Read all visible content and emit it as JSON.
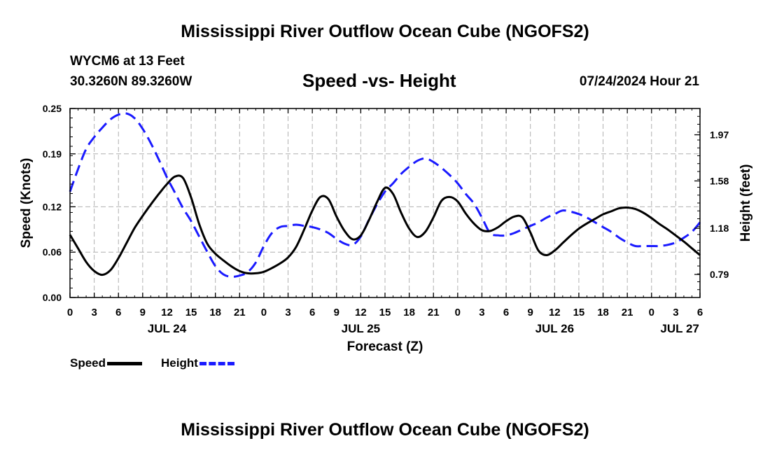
{
  "header": {
    "title": "Mississippi River Outflow Ocean Cube (NGOFS2)",
    "station": "WYCM6 at 13 Feet",
    "coords": "30.3260N  89.3260W",
    "subtitle": "Speed -vs- Height",
    "datetime": "07/24/2024 Hour 21"
  },
  "footer": {
    "title": "Mississippi River Outflow Ocean Cube (NGOFS2)"
  },
  "legend": {
    "speed_label": "Speed",
    "height_label": "Height"
  },
  "colors": {
    "speed": "#000000",
    "height": "#1a1aff",
    "grid": "#b0b0b0"
  },
  "chart_data": {
    "type": "line",
    "title": "Speed -vs- Height",
    "xlabel": "Forecast (Z)",
    "ylabel": "Speed (Knots)",
    "y2label": "Height (feet)",
    "xlim": [
      0,
      78
    ],
    "ylim": [
      0,
      0.25
    ],
    "y2lim": [
      0.595,
      2.192
    ],
    "x_ticks": [
      0,
      3,
      6,
      9,
      12,
      15,
      18,
      21,
      24,
      27,
      30,
      33,
      36,
      39,
      42,
      45,
      48,
      51,
      54,
      57,
      60,
      63,
      66,
      69,
      72,
      75,
      78
    ],
    "x_tick_labels": [
      "0",
      "3",
      "6",
      "9",
      "12",
      "15",
      "18",
      "21",
      "0",
      "3",
      "6",
      "9",
      "12",
      "15",
      "18",
      "21",
      "0",
      "3",
      "6",
      "9",
      "12",
      "15",
      "18",
      "21",
      "0",
      "3",
      "6"
    ],
    "date_labels": [
      {
        "label": "JUL 24",
        "x": 12
      },
      {
        "label": "JUL 25",
        "x": 36
      },
      {
        "label": "JUL 26",
        "x": 60
      },
      {
        "label": "JUL 27",
        "x": 75.5
      }
    ],
    "y_ticks": [
      0,
      0.06,
      0.12,
      0.19,
      0.25
    ],
    "y_tick_labels": [
      "0.00",
      "0.06",
      "0.12",
      "0.19",
      "0.25"
    ],
    "y2_ticks": [
      0.79,
      1.18,
      1.58,
      1.97
    ],
    "y2_tick_labels": [
      "0.79",
      "1.18",
      "1.58",
      "1.97"
    ],
    "grid": true,
    "legend_position": "bottom-left",
    "series": [
      {
        "name": "Speed",
        "axis": "left",
        "style": "solid",
        "x": [
          0,
          1,
          2,
          3,
          4,
          5,
          6,
          7,
          8,
          9,
          10,
          11,
          12,
          13,
          14,
          15,
          16,
          17,
          18,
          19,
          20,
          21,
          22,
          23,
          24,
          25,
          26,
          27,
          28,
          29,
          30,
          31,
          32,
          33,
          34,
          35,
          36,
          37,
          38,
          39,
          40,
          41,
          42,
          43,
          44,
          45,
          46,
          47,
          48,
          49,
          50,
          51,
          52,
          53,
          54,
          55,
          56,
          57,
          58,
          59,
          60,
          61,
          62,
          63,
          64,
          65,
          66,
          67,
          68,
          69,
          70,
          71,
          72,
          73,
          74,
          75,
          76,
          77,
          78
        ],
        "values": [
          0.083,
          0.065,
          0.047,
          0.035,
          0.03,
          0.036,
          0.052,
          0.072,
          0.092,
          0.108,
          0.123,
          0.137,
          0.15,
          0.16,
          0.158,
          0.132,
          0.097,
          0.071,
          0.058,
          0.049,
          0.041,
          0.035,
          0.032,
          0.032,
          0.034,
          0.039,
          0.045,
          0.053,
          0.067,
          0.09,
          0.115,
          0.133,
          0.13,
          0.107,
          0.088,
          0.077,
          0.082,
          0.102,
          0.126,
          0.145,
          0.137,
          0.112,
          0.091,
          0.08,
          0.087,
          0.106,
          0.128,
          0.133,
          0.127,
          0.111,
          0.098,
          0.089,
          0.088,
          0.093,
          0.101,
          0.107,
          0.106,
          0.086,
          0.062,
          0.056,
          0.062,
          0.072,
          0.082,
          0.091,
          0.098,
          0.104,
          0.11,
          0.114,
          0.118,
          0.119,
          0.117,
          0.112,
          0.105,
          0.097,
          0.09,
          0.082,
          0.074,
          0.065,
          0.056
        ]
      },
      {
        "name": "Height",
        "axis": "right",
        "style": "dashed",
        "x": [
          0,
          1,
          2,
          3,
          4,
          5,
          6,
          7,
          8,
          9,
          10,
          11,
          12,
          13,
          14,
          15,
          16,
          17,
          18,
          19,
          20,
          21,
          22,
          23,
          24,
          25,
          26,
          27,
          28,
          29,
          30,
          31,
          32,
          33,
          34,
          35,
          36,
          37,
          38,
          39,
          40,
          41,
          42,
          43,
          44,
          45,
          46,
          47,
          48,
          49,
          50,
          51,
          52,
          53,
          54,
          55,
          56,
          57,
          58,
          59,
          60,
          61,
          62,
          63,
          64,
          65,
          66,
          67,
          68,
          69,
          70,
          71,
          72,
          73,
          74,
          75,
          76,
          77,
          78
        ],
        "values": [
          1.49,
          1.68,
          1.85,
          1.95,
          2.03,
          2.1,
          2.14,
          2.15,
          2.11,
          2.02,
          1.9,
          1.76,
          1.61,
          1.48,
          1.35,
          1.24,
          1.11,
          0.98,
          0.86,
          0.79,
          0.77,
          0.78,
          0.81,
          0.89,
          1.03,
          1.14,
          1.19,
          1.2,
          1.21,
          1.2,
          1.19,
          1.17,
          1.14,
          1.09,
          1.05,
          1.04,
          1.11,
          1.25,
          1.38,
          1.49,
          1.56,
          1.64,
          1.7,
          1.75,
          1.77,
          1.74,
          1.69,
          1.63,
          1.56,
          1.47,
          1.39,
          1.27,
          1.14,
          1.12,
          1.12,
          1.14,
          1.17,
          1.2,
          1.23,
          1.27,
          1.3,
          1.33,
          1.32,
          1.3,
          1.27,
          1.23,
          1.19,
          1.15,
          1.1,
          1.06,
          1.03,
          1.03,
          1.03,
          1.03,
          1.04,
          1.06,
          1.1,
          1.15,
          1.23
        ]
      }
    ]
  }
}
